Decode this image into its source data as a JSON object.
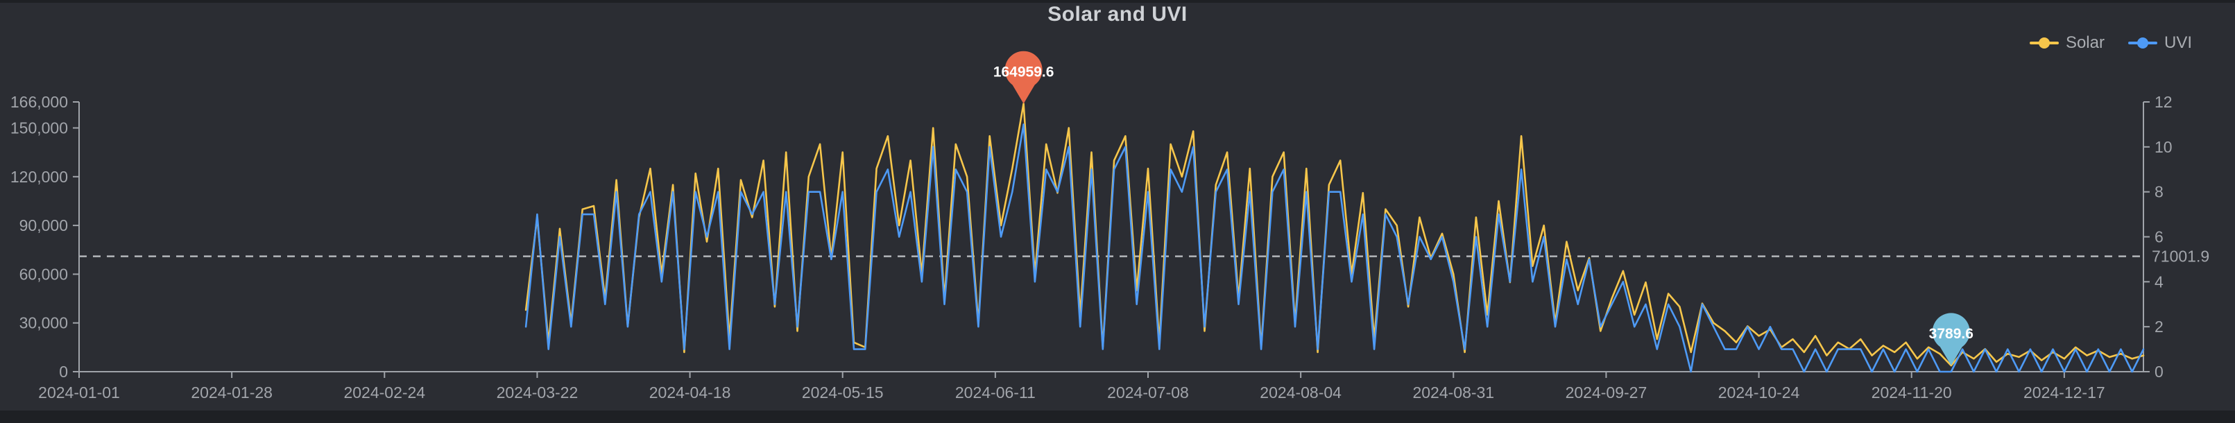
{
  "title": "Solar and UVI",
  "legend": {
    "items": [
      {
        "label": "Solar",
        "color": "#f6c64b"
      },
      {
        "label": "UVI",
        "color": "#4e9af5"
      }
    ]
  },
  "colors": {
    "page_background": "#1e2024",
    "chart_background": "#2b2d33",
    "axis_line": "#a0a4aa",
    "axis_label": "#a2a5ab",
    "average_line": "#b3b6ba",
    "solar_series": "#f6c64b",
    "uvi_series": "#4e9af5",
    "max_pin": "#e96b4c",
    "min_pin": "#73bcd8",
    "pin_label": "#ffffff"
  },
  "chart_data": {
    "type": "line",
    "title": "Solar and UVI",
    "legend_position": "top-right",
    "grid": false,
    "x_axis": {
      "kind": "date",
      "start": "2024-01-01",
      "end": "2024-12-31",
      "tick_labels": [
        "2024-01-01",
        "2024-01-28",
        "2024-02-24",
        "2024-03-22",
        "2024-04-18",
        "2024-05-15",
        "2024-06-11",
        "2024-07-08",
        "2024-08-04",
        "2024-08-31",
        "2024-09-27",
        "2024-10-24",
        "2024-11-20",
        "2024-12-17"
      ]
    },
    "y_axis_left": {
      "series": "Solar",
      "min": 0,
      "max": 166000,
      "tick_values": [
        0,
        30000,
        60000,
        90000,
        120000,
        150000,
        166000
      ],
      "tick_labels": [
        "0",
        "30,000",
        "60,000",
        "90,000",
        "120,000",
        "150,000",
        "166,000"
      ]
    },
    "y_axis_right": {
      "series": "UVI",
      "min": 0,
      "max": 12,
      "tick_values": [
        0,
        2,
        4,
        6,
        8,
        10,
        12
      ],
      "tick_labels": [
        "0",
        "2",
        "4",
        "6",
        "8",
        "10",
        "12"
      ]
    },
    "average_line": {
      "series": "Solar",
      "value": 71001.9,
      "label": "71001.9",
      "style": "dashed"
    },
    "markers": [
      {
        "kind": "max",
        "series": "Solar",
        "date": "2024-06-16",
        "value": 164959.6,
        "label": "164959.6",
        "color": "#e96b4c"
      },
      {
        "kind": "min",
        "series": "Solar",
        "date": "2024-11-27",
        "value": 3789.6,
        "label": "3789.6",
        "color": "#73bcd8"
      }
    ],
    "sampling_note": "values estimated from pixels; daily data approximated at 2-day steps from 2024-03-20 (no data Jan-mid Mar)",
    "series": [
      {
        "name": "Solar",
        "axis": "left",
        "color": "#f6c64b",
        "start_date": "2024-03-20",
        "step_days": 2,
        "values": [
          38000,
          95000,
          18000,
          88000,
          30000,
          100000,
          102000,
          45000,
          118000,
          28000,
          95000,
          125000,
          60000,
          115000,
          12000,
          122000,
          80000,
          125000,
          20000,
          118000,
          95000,
          130000,
          40000,
          135000,
          25000,
          120000,
          140000,
          70000,
          135000,
          18000,
          15000,
          125000,
          145000,
          90000,
          130000,
          60000,
          150000,
          45000,
          140000,
          120000,
          30000,
          145000,
          90000,
          125000,
          164959.6,
          60000,
          140000,
          110000,
          150000,
          35000,
          135000,
          15000,
          130000,
          145000,
          50000,
          125000,
          18000,
          140000,
          120000,
          148000,
          25000,
          115000,
          135000,
          45000,
          125000,
          15000,
          120000,
          135000,
          30000,
          125000,
          12000,
          115000,
          130000,
          60000,
          110000,
          20000,
          100000,
          90000,
          40000,
          95000,
          70000,
          85000,
          60000,
          12000,
          95000,
          35000,
          105000,
          55000,
          145000,
          65000,
          90000,
          30000,
          80000,
          50000,
          70000,
          25000,
          45000,
          62000,
          35000,
          55000,
          20000,
          48000,
          40000,
          12000,
          42000,
          30000,
          25000,
          18000,
          28000,
          22000,
          26000,
          15000,
          20000,
          12000,
          22000,
          10000,
          18000,
          14000,
          20000,
          10000,
          16000,
          12000,
          18000,
          8000,
          15000,
          11000,
          3789.6,
          12000,
          8000,
          14000,
          6000,
          11000,
          9000,
          13000,
          7000,
          12000,
          8000,
          15000,
          10000,
          13000,
          9000,
          11000,
          8000,
          10000
        ]
      },
      {
        "name": "UVI",
        "axis": "right",
        "color": "#4e9af5",
        "start_date": "2024-03-20",
        "step_days": 2,
        "values": [
          2,
          7,
          1,
          6,
          2,
          7,
          7,
          3,
          8,
          2,
          7,
          8,
          4,
          8,
          1,
          8,
          6,
          8,
          1,
          8,
          7,
          8,
          3,
          8,
          2,
          8,
          8,
          5,
          8,
          1,
          1,
          8,
          9,
          6,
          8,
          4,
          10,
          3,
          9,
          8,
          2,
          10,
          6,
          8,
          11,
          4,
          9,
          8,
          10,
          2,
          9,
          1,
          9,
          10,
          3,
          8,
          1,
          9,
          8,
          10,
          2,
          8,
          9,
          3,
          8,
          1,
          8,
          9,
          2,
          8,
          1,
          8,
          8,
          4,
          7,
          1,
          7,
          6,
          3,
          6,
          5,
          6,
          4,
          1,
          6,
          2,
          7,
          4,
          9,
          4,
          6,
          2,
          5,
          3,
          5,
          2,
          3,
          4,
          2,
          3,
          1,
          3,
          2,
          0,
          3,
          2,
          1,
          1,
          2,
          1,
          2,
          1,
          1,
          0,
          1,
          0,
          1,
          1,
          1,
          0,
          1,
          0,
          1,
          0,
          1,
          0,
          0,
          1,
          0,
          1,
          0,
          1,
          0,
          1,
          0,
          1,
          0,
          1,
          0,
          1,
          0,
          1,
          0,
          1
        ]
      }
    ]
  }
}
